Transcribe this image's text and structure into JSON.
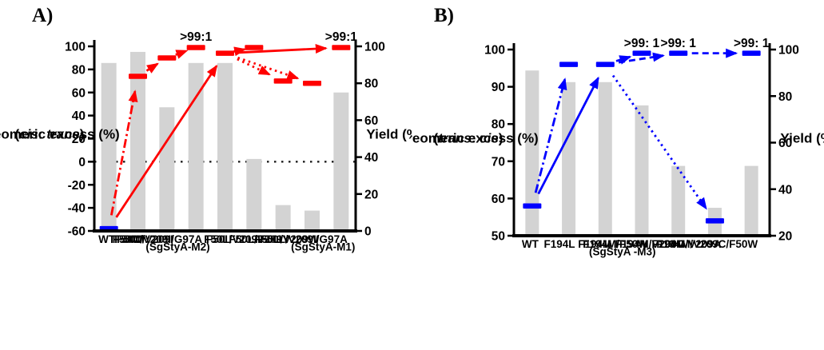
{
  "figure": {
    "background": "#ffffff"
  },
  "chart_data": [
    {
      "type": "bar",
      "panel_label": "A)",
      "subtype": "combo-bar-with-de-markers-and-evolution-arrows",
      "accent_color": "#ff0000",
      "bar_color": "#d3d3d3",
      "left_axis": {
        "title_line1": "Diastereomeric excess (%)",
        "title_line2_parts": [
          {
            "t": "(",
            "i": false
          },
          {
            "t": "cis",
            "i": true
          },
          {
            "t": ": ",
            "i": false
          },
          {
            "t": "trans",
            "i": true
          },
          {
            "t": ")",
            "i": false
          }
        ],
        "min": -60,
        "max": 100,
        "ticks": [
          {
            "v": 100,
            "label": "100"
          },
          {
            "v": 80,
            "label": "80"
          },
          {
            "v": 60,
            "label": "60"
          },
          {
            "v": 40,
            "label": "40"
          },
          {
            "v": 20,
            "label": "20"
          },
          {
            "v": 0,
            "label": "0"
          },
          {
            "v": -20,
            "label": "-20"
          },
          {
            "v": -40,
            "label": "-40"
          },
          {
            "v": -60,
            "label": "-60"
          }
        ]
      },
      "right_axis": {
        "title": "Yield (%)",
        "min": 0,
        "max": 100,
        "ticks": [
          {
            "v": 100,
            "label": "100"
          },
          {
            "v": 80,
            "label": "80"
          },
          {
            "v": 60,
            "label": "60"
          },
          {
            "v": 40,
            "label": "40"
          },
          {
            "v": 20,
            "label": "20"
          },
          {
            "v": 0,
            "label": "0"
          }
        ]
      },
      "categories": [
        {
          "line1": "WT"
        },
        {
          "line1": "F50M"
        },
        {
          "line1": "F50M/V209I"
        },
        {
          "line1": "F50M/V209I/G97A",
          "line2": "(SgStyA-M2)"
        },
        {
          "line1": "F50L"
        },
        {
          "line1": "F50L/V209I"
        },
        {
          "line1": "F50L/V209Y"
        },
        {
          "line1": "F50L/V209W"
        },
        {
          "line1": "F50L/V209I/G97A",
          "line2": "(SgStyA-M1)"
        }
      ],
      "yield_values": [
        91,
        97,
        67,
        91,
        91,
        39,
        14,
        11,
        75
      ],
      "de_values": [
        -58,
        74,
        90,
        99,
        94,
        99,
        70,
        68,
        99
      ],
      "de_marker_colors": [
        "#0000ff",
        "#ff0000",
        "#ff0000",
        "#ff0000",
        "#ff0000",
        "#ff0000",
        "#ff0000",
        "#ff0000",
        "#ff0000"
      ],
      "zero_line": true,
      "annotations": [
        {
          "text": ">99:1",
          "cat": 3
        },
        {
          "text": ">99:1",
          "cat": 8
        }
      ],
      "arrows": [
        {
          "from": 0,
          "to": 1,
          "style": "dashdot"
        },
        {
          "from": 1,
          "to": 2,
          "style": "dashdot"
        },
        {
          "from": 2,
          "to": 3,
          "style": "dashdot"
        },
        {
          "from": 0,
          "to": 4,
          "style": "solid"
        },
        {
          "from": 4,
          "to": 5,
          "style": "solid"
        },
        {
          "from": 4,
          "to": 8,
          "style": "solid"
        },
        {
          "from": 4,
          "to": 6,
          "style": "dotted"
        },
        {
          "from": 4,
          "to": 7,
          "style": "dotted"
        }
      ]
    },
    {
      "type": "bar",
      "panel_label": "B)",
      "subtype": "combo-bar-with-de-markers-and-evolution-arrows",
      "accent_color": "#0000ff",
      "bar_color": "#d3d3d3",
      "left_axis": {
        "title_line1": "Diastereomeric excess (%)",
        "title_line2_parts": [
          {
            "t": "(",
            "i": false
          },
          {
            "t": "trans",
            "i": true
          },
          {
            "t": ": ",
            "i": false
          },
          {
            "t": "cis",
            "i": true
          },
          {
            "t": ")",
            "i": false
          }
        ],
        "min": 50,
        "max": 100,
        "ticks": [
          {
            "v": 100,
            "label": "100"
          },
          {
            "v": 90,
            "label": "90"
          },
          {
            "v": 80,
            "label": "80"
          },
          {
            "v": 70,
            "label": "70"
          },
          {
            "v": 60,
            "label": "60"
          },
          {
            "v": 50,
            "label": "50"
          }
        ]
      },
      "right_axis": {
        "title": "Yield (%)",
        "min": 20,
        "max": 100,
        "ticks": [
          {
            "v": 100,
            "label": "100"
          },
          {
            "v": 80,
            "label": "80"
          },
          {
            "v": 60,
            "label": "60"
          },
          {
            "v": 40,
            "label": "40"
          },
          {
            "v": 20,
            "label": "20"
          }
        ]
      },
      "categories": [
        {
          "line1": "WT"
        },
        {
          "line1": "F194L"
        },
        {
          "line1": "F194M"
        },
        {
          "line1": "F194M/F50W",
          "line2": "(SgStyA -M3)"
        },
        {
          "line1": "F194M/V209C"
        },
        {
          "line1": "F194M/V209A"
        },
        {
          "line1": "F194M/V209C/F50W"
        }
      ],
      "yield_values": [
        91,
        86,
        86,
        76,
        50,
        32,
        50
      ],
      "de_values": [
        58,
        96,
        96,
        99,
        99,
        54,
        99
      ],
      "de_marker_colors": [
        "#0000ff",
        "#0000ff",
        "#0000ff",
        "#0000ff",
        "#0000ff",
        "#0000ff",
        "#0000ff"
      ],
      "zero_line": false,
      "annotations": [
        {
          "text": ">99: 1",
          "cat": 3
        },
        {
          "text": ">99: 1",
          "cat": 4
        },
        {
          "text": ">99: 1",
          "cat": 6
        }
      ],
      "arrows": [
        {
          "from": 0,
          "to": 1,
          "style": "dashdot"
        },
        {
          "from": 0,
          "to": 2,
          "style": "solid"
        },
        {
          "from": 2,
          "to": 3,
          "style": "solid"
        },
        {
          "from": 2,
          "to": 4,
          "style": "dashed"
        },
        {
          "from": 4,
          "to": 6,
          "style": "dashed"
        },
        {
          "from": 2,
          "to": 5,
          "style": "dotted"
        }
      ]
    }
  ]
}
